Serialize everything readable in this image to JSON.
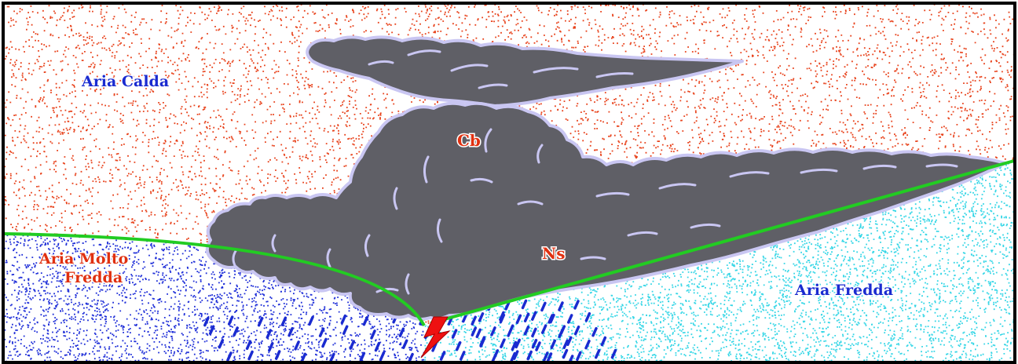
{
  "labels": {
    "warm_air": "Aria Calda",
    "very_cold_air_line1": "Aria Molto",
    "very_cold_air_line2": "Fredda",
    "cold_air": "Aria Fredda",
    "cumulonimbus": "Cb",
    "nimbostratus": "Ns"
  },
  "colors": {
    "warm_air_speckle": "#e8421b",
    "very_cold_air_speckle": "#1f2fd8",
    "cold_air_speckle": "#35d6e6",
    "cloud_fill": "#5f5f66",
    "cloud_outline": "#c9c6f2",
    "front_line": "#22cc22",
    "lightning": "#ee1111",
    "rain": "#1a2bd0",
    "label_blue": "#1a2bd0",
    "label_red": "#e03010"
  },
  "icons": {
    "lightning": "lightning-icon"
  }
}
